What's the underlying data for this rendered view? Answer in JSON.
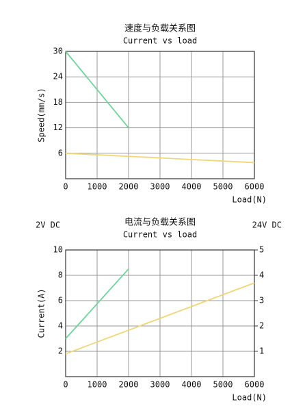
{
  "chart_data": [
    {
      "type": "line",
      "title": "速度与负载关系图",
      "subtitle": "Current vs load",
      "x_label": "Load(N)",
      "y_label": "Speed(mm/s)",
      "xlim": [
        0,
        6000
      ],
      "xticks": [
        0,
        1000,
        2000,
        3000,
        4000,
        5000,
        6000
      ],
      "ylim": [
        0,
        30
      ],
      "yticks": [
        6,
        12,
        18,
        24,
        30
      ],
      "grid": true,
      "series": [
        {
          "color": "#6fd39a",
          "x": [
            0,
            2000
          ],
          "values": [
            30,
            12
          ]
        },
        {
          "color": "#efd67a",
          "x": [
            0,
            6000
          ],
          "values": [
            6,
            3.8
          ]
        }
      ]
    },
    {
      "type": "line",
      "title": "电流与负载关系图",
      "subtitle": "Current vs load",
      "x_label": "Load(N)",
      "y_label": "Current(A)",
      "left_note": "2V DC",
      "right_note": "24V DC",
      "xlim": [
        0,
        6000
      ],
      "xticks": [
        0,
        1000,
        2000,
        3000,
        4000,
        5000,
        6000
      ],
      "ylim": [
        0,
        10
      ],
      "yticks": [
        2,
        4,
        6,
        8,
        10
      ],
      "y2lim": [
        0,
        5
      ],
      "y2ticks": [
        1,
        2,
        3,
        4,
        5
      ],
      "grid": true,
      "series": [
        {
          "color": "#6fd39a",
          "x": [
            0,
            2000
          ],
          "values": [
            3.0,
            8.5
          ]
        },
        {
          "color": "#efd67a",
          "x": [
            0,
            6000
          ],
          "values": [
            0.9,
            3.7
          ],
          "axis": "y2"
        }
      ]
    }
  ]
}
